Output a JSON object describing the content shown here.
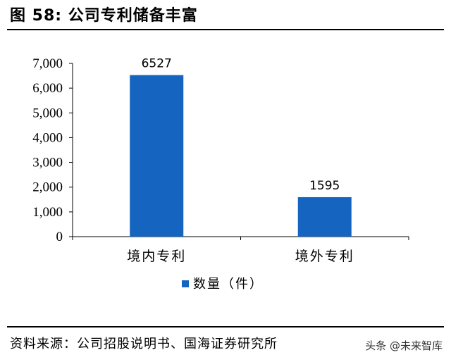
{
  "header": {
    "title": "图 58:  公司专利储备丰富"
  },
  "footer": {
    "source": "资料来源：公司招股说明书、国海证券研究所",
    "watermark": "头条 @未来智库"
  },
  "chart_data": {
    "type": "bar",
    "categories": [
      "境内专利",
      "境外专利"
    ],
    "series": [
      {
        "name": "数量（件）",
        "values": [
          6527,
          1595
        ],
        "color": "#1565C0"
      }
    ],
    "data_labels": [
      "6527",
      "1595"
    ],
    "yticks": [
      "0",
      "1,000",
      "2,000",
      "3,000",
      "4,000",
      "5,000",
      "6,000",
      "7,000"
    ],
    "ylim": [
      0,
      7000
    ],
    "grid": false,
    "legend_position": "bottom"
  }
}
